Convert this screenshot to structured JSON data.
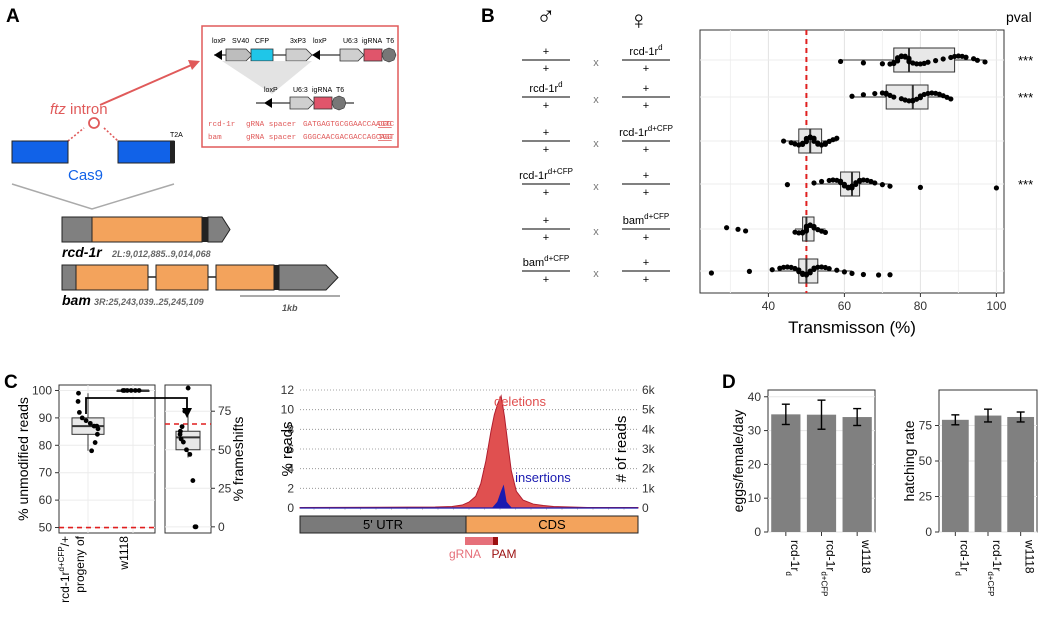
{
  "panels": {
    "A": {
      "label": "A",
      "construct": {
        "elements": [
          "loxP",
          "SV40",
          "CFP",
          "3xP3",
          "loxP",
          "U6:3",
          "igRNA",
          "T6"
        ],
        "excised_elements": [
          "loxP",
          "U6:3",
          "igRNA",
          "T6"
        ],
        "spacer_rows": [
          {
            "gene": "rcd-1r",
            "label": "gRNA spacer",
            "seq": "GATGAGTGCGGAACCAAGTC",
            "pam": "CGG"
          },
          {
            "gene": "bam",
            "label": "gRNA spacer",
            "seq": "GGGCAACGACGACCAGCAGT",
            "pam": "TGG"
          }
        ]
      },
      "ftz_label": "ftz",
      "intron_label": " intron",
      "cas9_label": "Cas9",
      "t2a_label": "T2A",
      "genes": [
        {
          "name": "rcd-1r",
          "coords": "2L:9,012,885..9,014,068"
        },
        {
          "name": "bam",
          "coords": "3R:25,243,039..25,245,109"
        }
      ],
      "scale_label": "1kb"
    },
    "B": {
      "label": "B",
      "male_symbol": "♂",
      "female_symbol": "♀",
      "cross_symbol": "x",
      "pval_header": "pval",
      "crosses": [
        {
          "male_top": "+",
          "male_top_sup": "",
          "male_bottom": "+",
          "female_top": "rcd-1r",
          "female_top_sup": "d",
          "female_bottom": "+",
          "pval": "***"
        },
        {
          "male_top": "rcd-1r",
          "male_top_sup": "d",
          "male_bottom": "+",
          "female_top": "+",
          "female_top_sup": "",
          "female_bottom": "+",
          "pval": "***"
        },
        {
          "male_top": "+",
          "male_top_sup": "",
          "male_bottom": "+",
          "female_top": "rcd-1r",
          "female_top_sup": "d+CFP",
          "female_bottom": "+",
          "pval": ""
        },
        {
          "male_top": "rcd-1r",
          "male_top_sup": "d+CFP",
          "male_bottom": "+",
          "female_top": "+",
          "female_top_sup": "",
          "female_bottom": "+",
          "pval": "***"
        },
        {
          "male_top": "+",
          "male_top_sup": "",
          "male_bottom": "+",
          "female_top": "bam",
          "female_top_sup": "d+CFP",
          "female_bottom": "+",
          "pval": ""
        },
        {
          "male_top": "bam",
          "male_top_sup": "d+CFP",
          "male_bottom": "+",
          "female_top": "+",
          "female_top_sup": "",
          "female_bottom": "+",
          "pval": ""
        }
      ]
    },
    "C": {
      "label": "C",
      "progeny_label": "progeny of",
      "genotype_label": "rcd-1r",
      "genotype_sup": "d+CFP",
      "genotype_suffix": "/+",
      "w1118_label": "w1118",
      "utr_label": "5' UTR",
      "cds_label": "CDS",
      "grna_label": "gRNA",
      "pam_label": "PAM",
      "deletions_label": "deletions",
      "insertions_label": "insertions"
    },
    "D": {
      "label": "D",
      "genotype_sup_label": "d",
      "genotype_sup_label2": "d+CFP"
    }
  },
  "chart_data": [
    {
      "id": "transmission",
      "type": "boxplot",
      "xlabel": "Transmisson (%)",
      "xlim": [
        22,
        102
      ],
      "xticks": [
        40,
        60,
        80,
        100
      ],
      "reference_line": 50,
      "groups": [
        {
          "min": 59,
          "q1": 73,
          "median": 77,
          "q3": 89,
          "max": 97,
          "points": [
            59,
            65,
            70,
            72,
            73,
            73,
            74,
            74,
            74,
            75,
            75,
            76,
            76,
            77,
            77,
            77,
            78,
            79,
            80,
            81,
            82,
            84,
            86,
            88,
            89,
            90,
            91,
            92,
            94,
            95,
            97
          ]
        },
        {
          "min": 62,
          "q1": 71,
          "median": 78,
          "q3": 82,
          "max": 88,
          "points": [
            62,
            65,
            68,
            70,
            71,
            71,
            72,
            73,
            75,
            76,
            77,
            78,
            78,
            79,
            80,
            80,
            81,
            82,
            83,
            84,
            85,
            86,
            87,
            88
          ]
        },
        {
          "min": 44,
          "q1": 48,
          "median": 51,
          "q3": 54,
          "max": 58,
          "points": [
            44,
            46,
            47,
            48,
            48,
            49,
            49,
            50,
            50,
            50,
            51,
            51,
            51,
            52,
            52,
            52,
            53,
            53,
            54,
            54,
            55,
            55,
            56,
            57,
            58
          ]
        },
        {
          "min": 52,
          "q1": 59,
          "median": 62,
          "q3": 64,
          "max": 72,
          "points": [
            45,
            52,
            54,
            56,
            57,
            58,
            59,
            59,
            60,
            60,
            61,
            61,
            62,
            62,
            62,
            63,
            63,
            64,
            64,
            65,
            66,
            67,
            68,
            70,
            72,
            80,
            100
          ]
        },
        {
          "min": 47,
          "q1": 49,
          "median": 50,
          "q3": 52,
          "max": 55,
          "points": [
            29,
            32,
            34,
            47,
            48,
            49,
            49,
            50,
            50,
            50,
            50,
            51,
            51,
            51,
            52,
            52,
            53,
            54,
            55
          ]
        },
        {
          "min": 41,
          "q1": 48,
          "median": 50,
          "q3": 53,
          "max": 62,
          "points": [
            25,
            35,
            41,
            43,
            44,
            45,
            46,
            47,
            48,
            48,
            49,
            49,
            50,
            50,
            50,
            51,
            51,
            52,
            52,
            53,
            54,
            55,
            56,
            58,
            60,
            62,
            65,
            69,
            72
          ]
        }
      ]
    },
    {
      "id": "unmodified_reads",
      "type": "boxplot",
      "ylabel": "% unmodified reads",
      "ylim": [
        48,
        102
      ],
      "yticks": [
        50,
        60,
        70,
        80,
        90,
        100
      ],
      "reference_line": 50,
      "categories": [
        "progeny of rcd-1r d+CFP/+",
        "w1118"
      ],
      "groups": [
        {
          "min": 78,
          "q1": 84,
          "median": 87,
          "q3": 90,
          "max": 99,
          "points": [
            78,
            81,
            84,
            86,
            87,
            87,
            88,
            89,
            90,
            92,
            96,
            99
          ]
        },
        {
          "min": 100,
          "q1": 100,
          "median": 100,
          "q3": 100,
          "max": 100,
          "points": [
            100,
            100,
            100,
            100,
            100,
            100
          ]
        }
      ]
    },
    {
      "id": "frameshifts",
      "type": "boxplot",
      "ylabel": "% frameshifts",
      "ylim": [
        -4,
        92
      ],
      "yticks": [
        0,
        25,
        50,
        75
      ],
      "reference_line": 66.7,
      "groups": [
        {
          "min": 45,
          "q1": 50,
          "median": 58,
          "q3": 62,
          "max": 73,
          "points": [
            0,
            0,
            30,
            47,
            50,
            55,
            57,
            60,
            62,
            65,
            75,
            90
          ]
        }
      ]
    },
    {
      "id": "reads_profile",
      "type": "area",
      "ylabel": "% reads",
      "y2label": "# of reads",
      "ylim": [
        0,
        12
      ],
      "yticks": [
        0,
        2,
        4,
        6,
        8,
        10,
        12
      ],
      "y2ticks": [
        "0",
        "1k",
        "2k",
        "3k",
        "4k",
        "5k",
        "6k"
      ],
      "xlim": [
        0,
        100
      ],
      "series": [
        {
          "name": "deletions",
          "x": [
            0,
            40,
            45,
            48,
            50,
            52,
            53.5,
            55,
            56.5,
            57.5,
            58.5,
            59.5,
            60.5,
            61.5,
            62.5,
            64,
            66,
            69,
            72,
            75,
            80,
            85,
            100
          ],
          "y": [
            0.05,
            0.1,
            0.15,
            0.3,
            0.6,
            1.2,
            2.5,
            4.8,
            7.8,
            9.5,
            10.6,
            11.4,
            9.3,
            6.5,
            3.8,
            1.7,
            0.8,
            0.4,
            0.25,
            0.15,
            0.1,
            0.05,
            0.05
          ]
        },
        {
          "name": "insertions",
          "x": [
            0,
            57,
            58.5,
            59.5,
            60.2,
            61,
            62.5,
            100
          ],
          "y": [
            0,
            0,
            0.6,
            1.6,
            2.2,
            0.6,
            0,
            0
          ]
        }
      ]
    },
    {
      "id": "eggs",
      "type": "bar",
      "ylabel": "eggs/female/day",
      "ylim": [
        0,
        42
      ],
      "yticks": [
        0,
        10,
        20,
        30,
        40
      ],
      "categories": [
        "rcd-1r d",
        "rcd-1r d+CFP",
        "w1118"
      ],
      "values": [
        34.8,
        34.7,
        34.0
      ],
      "errors": [
        3.0,
        4.3,
        2.5
      ]
    },
    {
      "id": "hatching",
      "type": "bar",
      "ylabel": "hatching rate",
      "ylim": [
        0,
        100
      ],
      "yticks": [
        0,
        25,
        50,
        75
      ],
      "categories": [
        "rcd-1r d",
        "rcd-1r d+CFP",
        "w1118"
      ],
      "values": [
        79,
        82,
        81
      ],
      "errors": [
        3.5,
        4.5,
        3.5
      ]
    }
  ]
}
